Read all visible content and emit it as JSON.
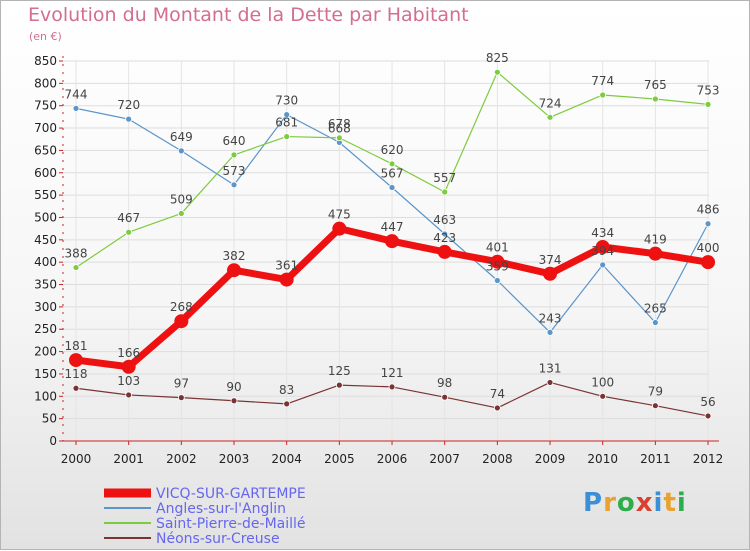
{
  "header": {
    "title": "Evolution du Montant de la Dette par Habitant",
    "unit": "(en €)"
  },
  "logo": {
    "text": "Proxiti",
    "colors": [
      "#3a8fd6",
      "#e9a22f",
      "#2eae4a",
      "#d9402e",
      "#3a8fd6",
      "#e9a22f",
      "#2eae4a"
    ]
  },
  "chart_data": {
    "type": "line",
    "x": [
      "2000",
      "2001",
      "2002",
      "2003",
      "2004",
      "2005",
      "2006",
      "2007",
      "2008",
      "2009",
      "2010",
      "2011",
      "2012"
    ],
    "ylim": [
      0,
      850
    ],
    "yticks": [
      0,
      50,
      100,
      150,
      200,
      250,
      300,
      350,
      400,
      450,
      500,
      550,
      600,
      650,
      700,
      750,
      800,
      850
    ],
    "grid": true,
    "legend_position": "bottom-left",
    "series": [
      {
        "name": "Angles-sur-l'Anglin",
        "color": "#5b95c9",
        "width": 1.2,
        "values": [
          744,
          720,
          649,
          573,
          730,
          668,
          567,
          463,
          359,
          243,
          394,
          265,
          486
        ]
      },
      {
        "name": "Saint-Pierre-de-Maillé",
        "color": "#7dcb3e",
        "width": 1.2,
        "values": [
          388,
          467,
          509,
          640,
          681,
          678,
          620,
          557,
          825,
          724,
          774,
          765,
          753
        ]
      },
      {
        "name": "Néons-sur-Creuse",
        "color": "#7a3333",
        "width": 1.2,
        "values": [
          118,
          103,
          97,
          90,
          83,
          125,
          121,
          98,
          74,
          131,
          100,
          79,
          56
        ]
      },
      {
        "name": "VICQ-SUR-GARTEMPE",
        "color": "#ee1111",
        "width": 7,
        "values": [
          181,
          166,
          268,
          382,
          361,
          475,
          447,
          423,
          401,
          374,
          434,
          419,
          400
        ]
      }
    ]
  }
}
